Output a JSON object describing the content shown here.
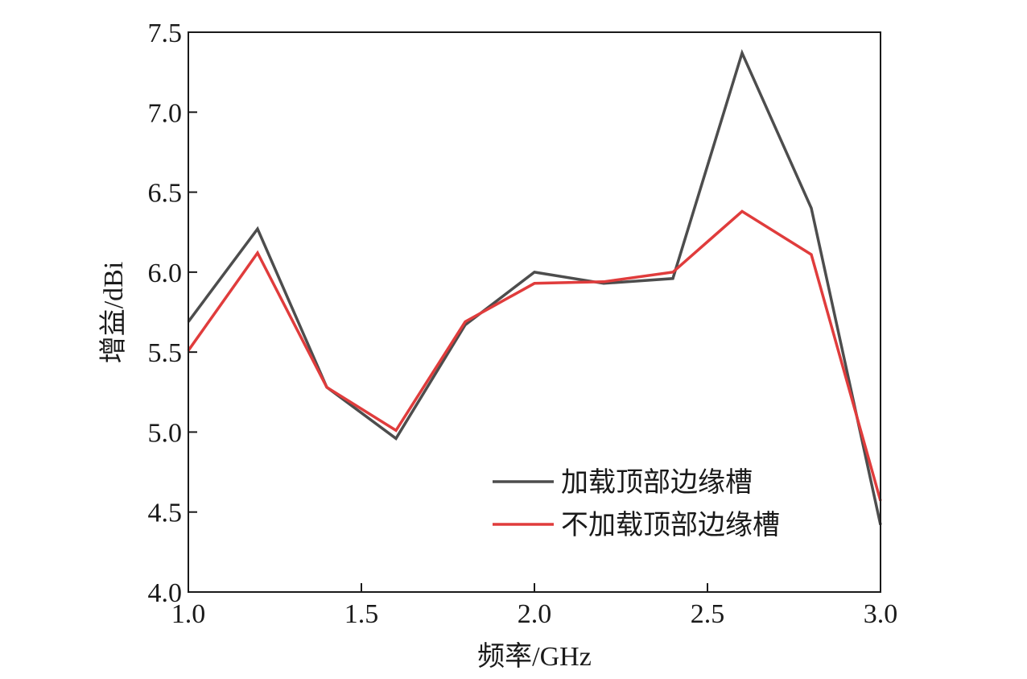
{
  "chart_data": {
    "type": "line",
    "xlabel": "频率/GHz",
    "ylabel": "增益/dBi",
    "xlim": [
      1.0,
      3.0
    ],
    "ylim": [
      4.0,
      7.5
    ],
    "xticks": [
      "1.0",
      "1.5",
      "2.0",
      "2.5",
      "3.0"
    ],
    "yticks": [
      "4.0",
      "4.5",
      "5.0",
      "5.5",
      "6.0",
      "6.5",
      "7.0",
      "7.5"
    ],
    "grid": false,
    "legend_position": "bottom-right",
    "x": [
      1.0,
      1.2,
      1.4,
      1.6,
      1.8,
      2.0,
      2.2,
      2.4,
      2.6,
      2.8,
      3.0
    ],
    "series": [
      {
        "name": "加载顶部边缘槽",
        "color": "#4d4d4d",
        "values": [
          5.69,
          6.27,
          5.28,
          4.96,
          5.67,
          6.0,
          5.93,
          5.96,
          7.37,
          6.4,
          4.42
        ]
      },
      {
        "name": "不加载顶部边缘槽",
        "color": "#e03c3c",
        "values": [
          5.51,
          6.12,
          5.28,
          5.01,
          5.69,
          5.93,
          5.94,
          6.0,
          6.38,
          6.11,
          4.57
        ]
      }
    ]
  }
}
